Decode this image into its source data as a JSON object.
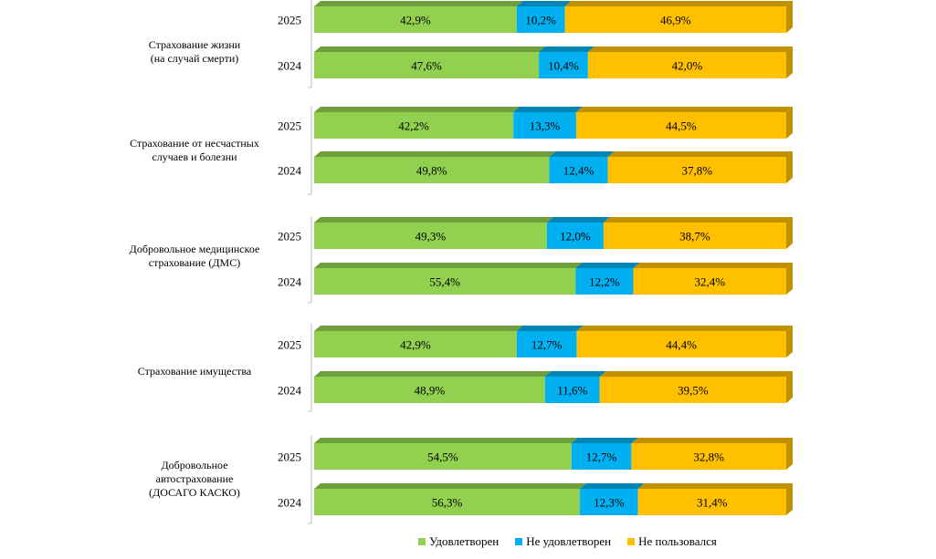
{
  "chart_data": {
    "type": "bar",
    "orientation": "horizontal",
    "stacked": "percent",
    "style": "3d",
    "value_format": "percent-comma",
    "xlim": [
      0,
      100
    ],
    "series": [
      {
        "name": "Удовлетворен",
        "color": "#92D050",
        "top_color": "#6E9F3C"
      },
      {
        "name": "Не удовлетворен",
        "color": "#00B0F0",
        "top_color": "#0085B5"
      },
      {
        "name": "Не пользовался",
        "color": "#FFC000",
        "top_color": "#C09000"
      }
    ],
    "groups": [
      {
        "label": "Страхование жизни\n(на случай смерти)",
        "bars": [
          {
            "year": "2025",
            "values": [
              42.9,
              10.2,
              46.9
            ],
            "labels": [
              "42,9%",
              "10,2%",
              "46,9%"
            ]
          },
          {
            "year": "2024",
            "values": [
              47.6,
              10.4,
              42.0
            ],
            "labels": [
              "47,6%",
              "10,4%",
              "42,0%"
            ]
          }
        ]
      },
      {
        "label": "Страхование от несчастных\nслучаев и болезни",
        "bars": [
          {
            "year": "2025",
            "values": [
              42.2,
              13.3,
              44.5
            ],
            "labels": [
              "42,2%",
              "13,3%",
              "44,5%"
            ]
          },
          {
            "year": "2024",
            "values": [
              49.8,
              12.4,
              37.8
            ],
            "labels": [
              "49,8%",
              "12,4%",
              "37,8%"
            ]
          }
        ]
      },
      {
        "label": "Добровольное медицинское\nстрахование (ДМС)",
        "bars": [
          {
            "year": "2025",
            "values": [
              49.3,
              12.0,
              38.7
            ],
            "labels": [
              "49,3%",
              "12,0%",
              "38,7%"
            ]
          },
          {
            "year": "2024",
            "values": [
              55.4,
              12.2,
              32.4
            ],
            "labels": [
              "55,4%",
              "12,2%",
              "32,4%"
            ]
          }
        ]
      },
      {
        "label": "Страхование имущества",
        "bars": [
          {
            "year": "2025",
            "values": [
              42.9,
              12.7,
              44.4
            ],
            "labels": [
              "42,9%",
              "12,7%",
              "44,4%"
            ]
          },
          {
            "year": "2024",
            "values": [
              48.9,
              11.6,
              39.5
            ],
            "labels": [
              "48,9%",
              "11,6%",
              "39,5%"
            ]
          }
        ]
      },
      {
        "label": "Добровольное\nавтострахование\n(ДОСАГО КАСКО)",
        "bars": [
          {
            "year": "2025",
            "values": [
              54.5,
              12.7,
              32.8
            ],
            "labels": [
              "54,5%",
              "12,7%",
              "32,8%"
            ]
          },
          {
            "year": "2024",
            "values": [
              56.3,
              12.3,
              31.4
            ],
            "labels": [
              "56,3%",
              "12,3%",
              "31,4%"
            ]
          }
        ]
      }
    ],
    "legend_position": "bottom-center"
  }
}
